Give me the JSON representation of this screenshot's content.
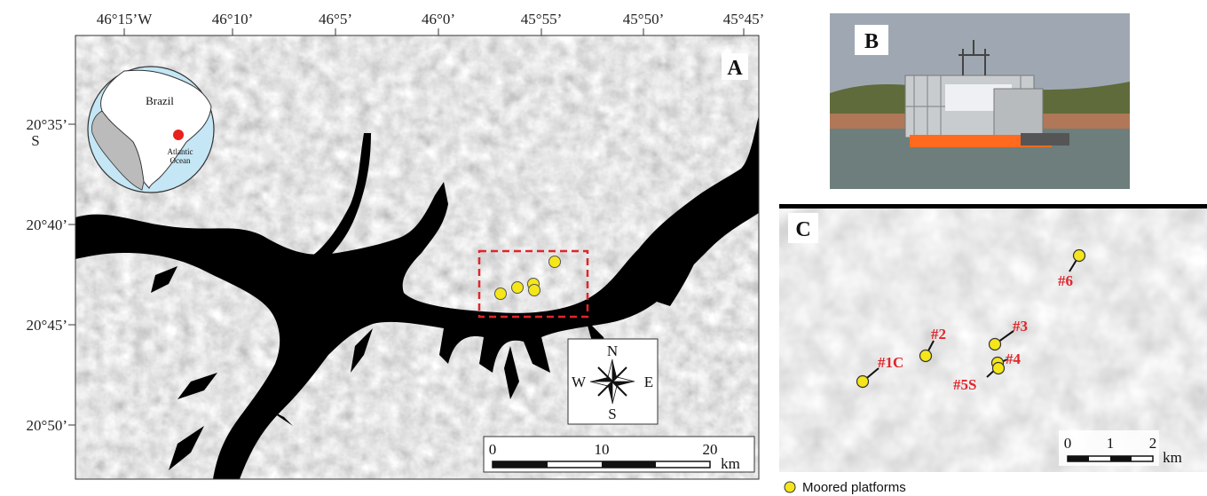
{
  "panel_a": {
    "label": "A",
    "longitude_labels": [
      "46°15’W",
      "46°10’",
      "46°5’",
      "46°0’",
      "45°55’",
      "45°50’",
      "45°45’"
    ],
    "latitude_labels": [
      "20°35’",
      "20°40’",
      "20°45’",
      "20°50’"
    ],
    "latitude_hemisphere": "S",
    "inset": {
      "country": "Brazil",
      "ocean": [
        "Atlantic",
        "Ocean"
      ]
    },
    "compass": {
      "north": "N",
      "south": "S",
      "east": "E",
      "west": "W"
    },
    "scale_bar": {
      "ticks": [
        "0",
        "10",
        "20"
      ],
      "unit": "km"
    }
  },
  "panel_b": {
    "label": "B"
  },
  "panel_c": {
    "label": "C",
    "platforms": [
      "#1C",
      "#2",
      "#3",
      "#4",
      "#5S",
      "#6"
    ],
    "scale_bar": {
      "ticks": [
        "0",
        "1",
        "2"
      ],
      "unit": "km"
    }
  },
  "legend": {
    "label": "Moored platforms"
  }
}
